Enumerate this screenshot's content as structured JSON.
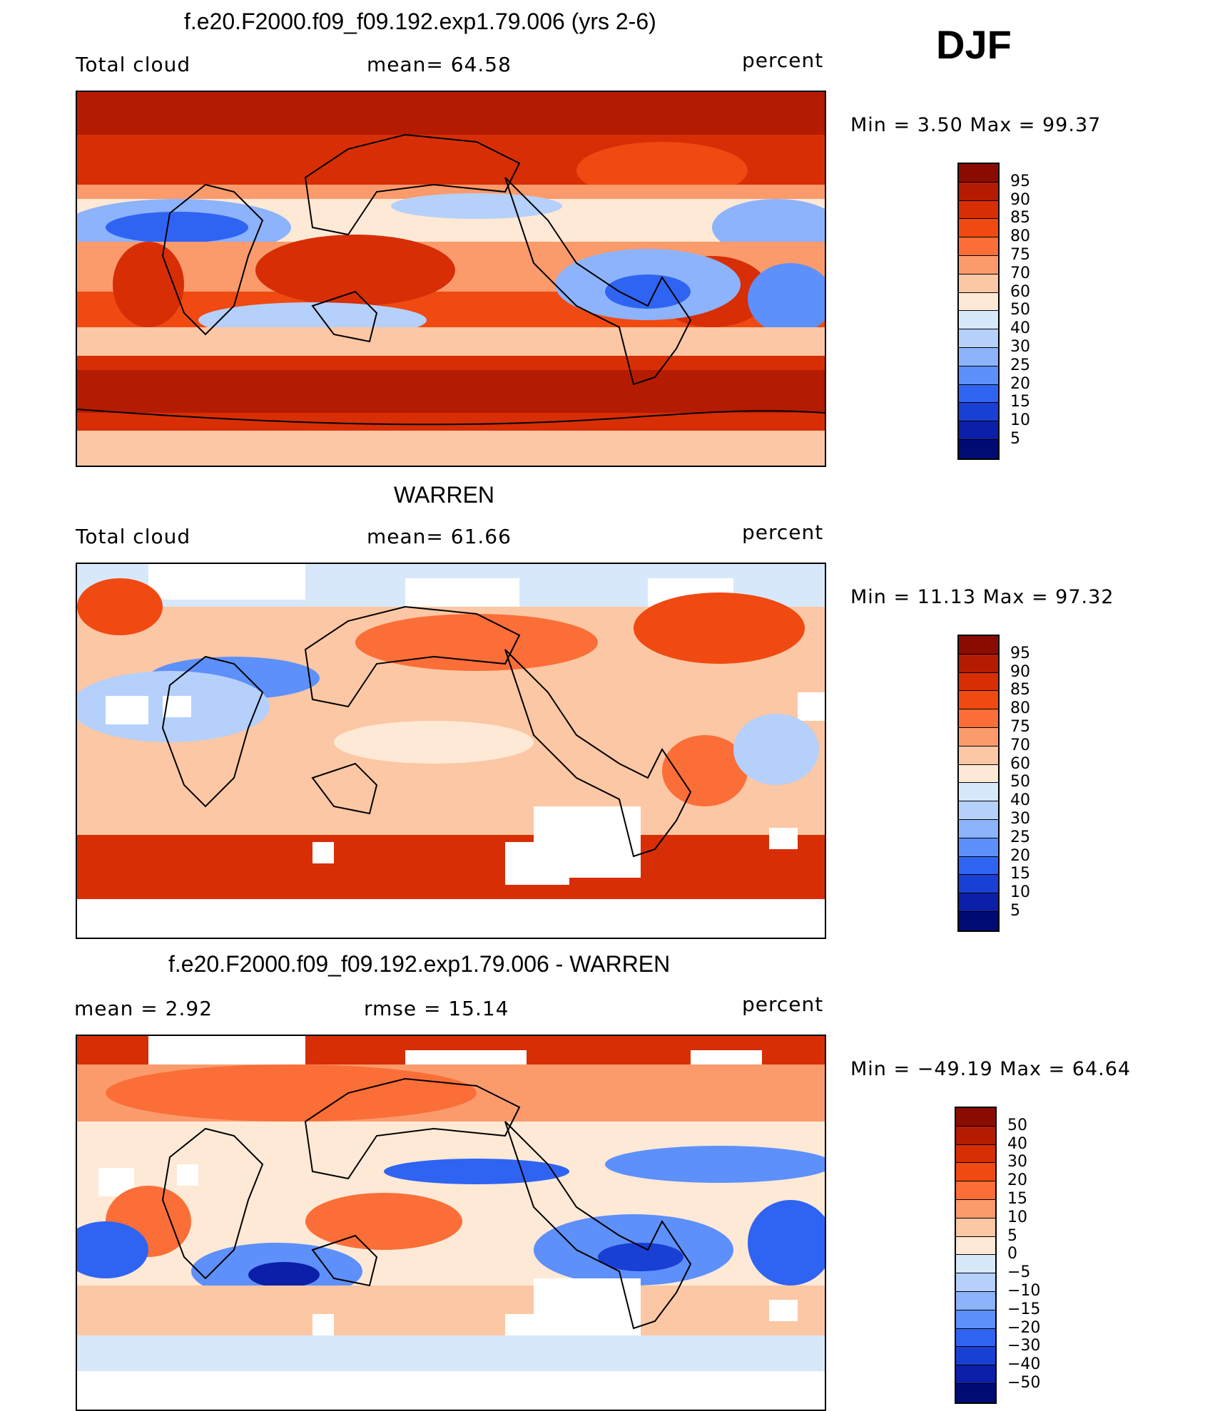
{
  "season": "DJF",
  "panels": [
    {
      "title": "f.e20.F2000.f09_f09.192.exp1.79.006 (yrs 2-6)",
      "left_text": "Total cloud",
      "center_text": "mean=  64.58",
      "right_text": "percent",
      "min_max": "Min =    3.50  Max =   99.37"
    },
    {
      "title": "WARREN",
      "left_text": "Total cloud",
      "center_text": "mean=  61.66",
      "right_text": "percent",
      "min_max": "Min =  11.13  Max =   97.32"
    },
    {
      "title": "f.e20.F2000.f09_f09.192.exp1.79.006 - WARREN",
      "left_text": "mean =    2.92",
      "center_text": "rmse =   15.14",
      "right_text": "percent",
      "min_max": "Min = −49.19  Max =   64.64"
    }
  ],
  "colorbars": {
    "absolute": {
      "labels": [
        "95",
        "90",
        "85",
        "80",
        "75",
        "70",
        "60",
        "50",
        "40",
        "30",
        "25",
        "20",
        "15",
        "10",
        "5"
      ],
      "colors": [
        "#8a0c00",
        "#b51b00",
        "#d72e06",
        "#f04a12",
        "#fb6e38",
        "#fb9b6c",
        "#fcc7a4",
        "#fde9d6",
        "#d8e8fb",
        "#b5d0fb",
        "#8cb3fb",
        "#5d90fb",
        "#2f64f3",
        "#1a3fd4",
        "#0c1fa8",
        "#000b74"
      ]
    },
    "difference": {
      "labels": [
        "50",
        "40",
        "30",
        "20",
        "15",
        "10",
        "5",
        "0",
        "−5",
        "−10",
        "−15",
        "−20",
        "−30",
        "−40",
        "−50"
      ],
      "colors": [
        "#8a0c00",
        "#b51b00",
        "#d72e06",
        "#f04a12",
        "#fb6e38",
        "#fb9b6c",
        "#fcc7a4",
        "#fde9d6",
        "#d8e8fb",
        "#b5d0fb",
        "#8cb3fb",
        "#5d90fb",
        "#2f64f3",
        "#1a3fd4",
        "#0c1fa8",
        "#000b74"
      ]
    }
  }
}
